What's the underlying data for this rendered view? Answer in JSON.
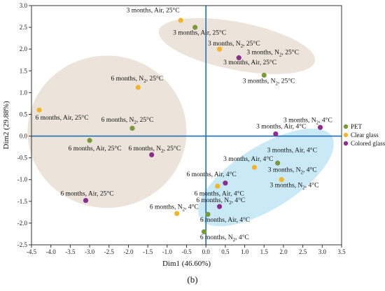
{
  "chart_data": {
    "type": "scatter",
    "xlabel": "Dim1 (46.60%)",
    "ylabel": "Dim2 (29.88%)",
    "panel_label": "(b)",
    "xlim": [
      -4.5,
      3.5
    ],
    "ylim": [
      -2.5,
      3.0
    ],
    "xticks": [
      "-4.5",
      "-4.0",
      "-3.5",
      "-3.0",
      "-2.5",
      "-2.0",
      "-1.5",
      "-1.0",
      "-0.5",
      "0.0",
      "0.5",
      "1.0",
      "1.5",
      "2.0",
      "2.5",
      "3.0",
      "3.5"
    ],
    "yticks": [
      "3.0",
      "2.5",
      "2.0",
      "1.5",
      "1.0",
      "0.5",
      "0.0",
      "-0.5",
      "-1.0",
      "-1.5",
      "-2.0",
      "-2.5"
    ],
    "grid": false,
    "legend_position": "right",
    "series": [
      {
        "name": "PET",
        "color": "#7a9a3a",
        "points": [
          {
            "x": -0.28,
            "y": 2.5,
            "label": "3 months, Air, 25°C"
          },
          {
            "x": 1.5,
            "y": 1.4,
            "label": "3 months, N2, 25°C"
          },
          {
            "x": -3.0,
            "y": -0.1,
            "label": "6 months, Air, 25°C"
          },
          {
            "x": -1.9,
            "y": 0.18,
            "label": "6 months, N2, 25°C"
          },
          {
            "x": 1.85,
            "y": -0.62,
            "label": "3 months, Air, 4°C"
          },
          {
            "x": 0.05,
            "y": -1.8,
            "label": "6 months, Air, 4°C"
          },
          {
            "x": -0.05,
            "y": -2.2,
            "label": "6 months, N2, 4°C"
          }
        ]
      },
      {
        "name": "Clear glass",
        "color": "#f2b52a",
        "points": [
          {
            "x": -0.65,
            "y": 2.66,
            "label": "3 months, Air, 25°C"
          },
          {
            "x": 0.35,
            "y": 2.0,
            "label": "3 months, N2, 25°C"
          },
          {
            "x": -4.3,
            "y": 0.6,
            "label": "6 months, Air, 25°C"
          },
          {
            "x": -1.75,
            "y": 1.12,
            "label": "6 months, N2, 25°C"
          },
          {
            "x": 1.25,
            "y": -0.72,
            "label": "3 months, Air, 4°C"
          },
          {
            "x": 1.95,
            "y": -1.0,
            "label": "3 months, N2, 4°C"
          },
          {
            "x": 0.3,
            "y": -1.15,
            "label": "6 months, Air, 4°C"
          },
          {
            "x": -0.75,
            "y": -1.78,
            "label": "6 months, N2, 4°C"
          }
        ]
      },
      {
        "name": "Colored glass",
        "color": "#8b2f8e",
        "points": [
          {
            "x": 0.85,
            "y": 1.8,
            "label": "3 months, N2, 25°C"
          },
          {
            "x": -3.1,
            "y": -1.48,
            "label": "6 months, Air, 25°C"
          },
          {
            "x": -1.4,
            "y": -0.43,
            "label": "6 months, N2, 25°C"
          },
          {
            "x": 1.8,
            "y": 0.05,
            "label": "3 months, Air, 4°C"
          },
          {
            "x": 2.95,
            "y": 0.2,
            "label": "3 months, N2, 4°C"
          },
          {
            "x": 0.5,
            "y": -1.08,
            "label": "6 months, Air, 4°C"
          },
          {
            "x": 0.35,
            "y": -1.62,
            "label": "6 months, N2, 4°C"
          }
        ]
      }
    ],
    "annotations": [
      {
        "text": "3 months, Air, 25°C",
        "x": -2.05,
        "y": 2.85
      },
      {
        "text": "3 months, Air, 25°C",
        "x": -0.85,
        "y": 2.33
      },
      {
        "text": "3 months, N",
        "sub": "2",
        "tail": ", 25°C",
        "x": 0.05,
        "y": 2.08
      },
      {
        "text": "3 months, N",
        "sub": "2",
        "tail": ", 25°C",
        "x": 1.05,
        "y": 1.88
      },
      {
        "text": "3 months, Air, 25°C",
        "x": 0.45,
        "y": 1.65
      },
      {
        "text": "3 months, N",
        "sub": "2",
        "tail": ", 25°C",
        "x": 0.95,
        "y": 1.22
      },
      {
        "text": "6 months, N",
        "sub": "2",
        "tail": ", 25°C",
        "x": -2.45,
        "y": 1.28
      },
      {
        "text": "6 months, Air, 25°C",
        "x": -4.4,
        "y": 0.38
      },
      {
        "text": "6 months, N",
        "sub": "2",
        "tail": ", 25°C",
        "x": -2.7,
        "y": 0.33
      },
      {
        "text": "6 months, Air, 25°C",
        "x": -3.55,
        "y": -0.33
      },
      {
        "text": "6 months, N",
        "sub": "2",
        "tail": ", 25°C",
        "x": -2.0,
        "y": -0.33
      },
      {
        "text": "6 months, Air, 25°C",
        "x": -3.75,
        "y": -1.37
      },
      {
        "text": "3 months, N",
        "sub": "2",
        "tail": ", 4°C",
        "x": 2.0,
        "y": 0.32
      },
      {
        "text": "3 months, Air, 4°C",
        "x": 1.3,
        "y": 0.18
      },
      {
        "text": "3 months, Air, 4°C",
        "x": 1.58,
        "y": -0.37
      },
      {
        "text": "3 months, Air, 4°C",
        "x": 0.45,
        "y": -0.57
      },
      {
        "text": "3 months, N",
        "sub": "2",
        "tail": ", 4°C",
        "x": 1.6,
        "y": -0.82
      },
      {
        "text": "3 months, N",
        "sub": "2",
        "tail": ", 4°C",
        "x": 1.65,
        "y": -1.17
      },
      {
        "text": "6 months, Air, 4°C",
        "x": -0.5,
        "y": -0.92
      },
      {
        "text": "6 months, Air, 4°C",
        "x": -0.3,
        "y": -1.37
      },
      {
        "text": "6 months, N",
        "sub": "2",
        "tail": ", 4°C",
        "x": -0.25,
        "y": -1.52
      },
      {
        "text": "6 months, N",
        "sub": "2",
        "tail": ", 4°C",
        "x": -1.45,
        "y": -1.67
      },
      {
        "text": "6 months, Air, 4°C",
        "x": -0.15,
        "y": -1.97
      },
      {
        "text": "6 months, N",
        "sub": "2",
        "tail": ", 4°C",
        "x": -0.15,
        "y": -2.37
      }
    ],
    "clusters": [
      {
        "name": "cluster-3-months-25C",
        "cx": 0.8,
        "cy": 2.07,
        "rx": 2.05,
        "ry": 0.55,
        "rotate": 11,
        "color": "#ece3da"
      },
      {
        "name": "cluster-6-months-25C",
        "cx": -2.55,
        "cy": 0.1,
        "rx": 2.05,
        "ry": 1.75,
        "rotate": 0,
        "color": "#ece3da"
      },
      {
        "name": "cluster-4C",
        "cx": 1.55,
        "cy": -0.95,
        "rx": 2.0,
        "ry": 0.72,
        "rotate": -32,
        "color": "#c9e9f6"
      }
    ]
  }
}
